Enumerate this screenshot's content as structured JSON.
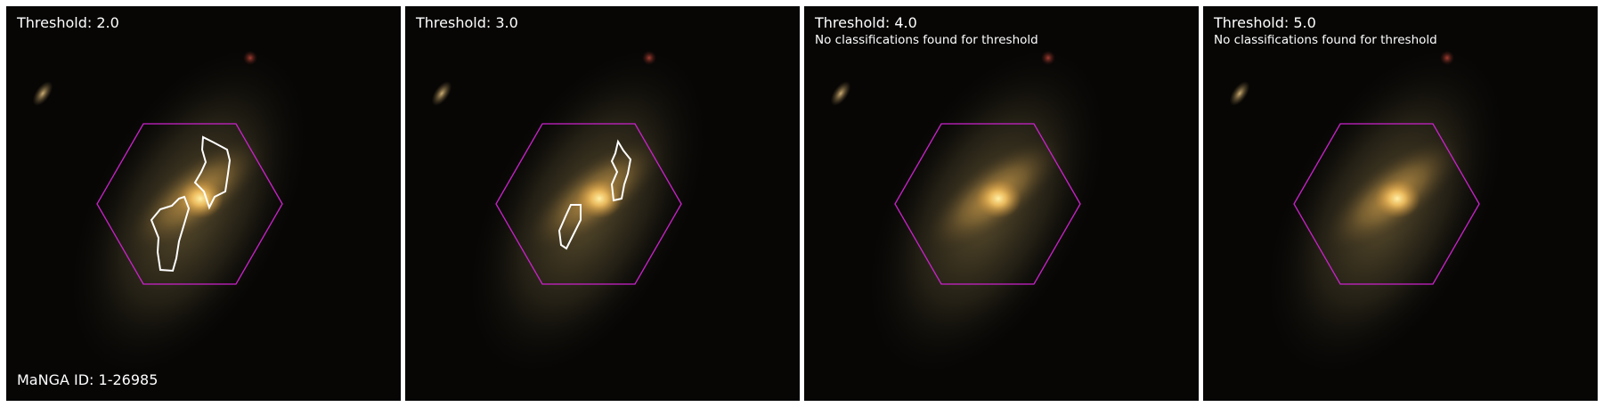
{
  "figure": {
    "hexagon_color": "#cc22cc",
    "contour_color": "#ffffff",
    "panels": [
      {
        "title": "Threshold: 2.0",
        "note": "",
        "footer": "MaNGA ID: 1-26985"
      },
      {
        "title": "Threshold: 3.0",
        "note": "",
        "footer": ""
      },
      {
        "title": "Threshold: 4.0",
        "note": "No classifications found for threshold",
        "footer": ""
      },
      {
        "title": "Threshold: 5.0",
        "note": "No classifications found for threshold",
        "footer": ""
      }
    ]
  }
}
